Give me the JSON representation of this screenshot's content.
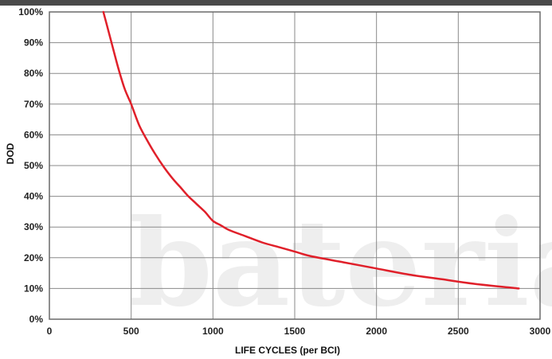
{
  "chart_data": {
    "type": "line",
    "title": "",
    "xlabel": "LIFE CYCLES (per BCI)",
    "ylabel": "DOD",
    "xlim": [
      0,
      3000
    ],
    "ylim": [
      0,
      100
    ],
    "x_ticks": [
      0,
      500,
      1000,
      1500,
      2000,
      2500,
      3000
    ],
    "y_ticks": [
      0,
      10,
      20,
      30,
      40,
      50,
      60,
      70,
      80,
      90,
      100
    ],
    "x_tick_labels": [
      "0",
      "500",
      "1000",
      "1500",
      "2000",
      "2500",
      "3000"
    ],
    "y_tick_labels": [
      "0%",
      "10%",
      "20%",
      "30%",
      "40%",
      "50%",
      "60%",
      "70%",
      "80%",
      "90%",
      "100%"
    ],
    "grid": true,
    "series": [
      {
        "color": "#e0202a",
        "x": [
          330,
          350,
          380,
          420,
          460,
          500,
          550,
          600,
          650,
          700,
          750,
          800,
          850,
          900,
          950,
          1000,
          1050,
          1100,
          1200,
          1300,
          1400,
          1500,
          1600,
          1800,
          2000,
          2200,
          2400,
          2600,
          2870
        ],
        "y": [
          100,
          96,
          90,
          82,
          75,
          70,
          63,
          58,
          53.5,
          49.5,
          46,
          43,
          40,
          37.5,
          35,
          32,
          30.5,
          29,
          27,
          25,
          23.5,
          22,
          20.5,
          18.5,
          16.5,
          14.5,
          13,
          11.5,
          10
        ]
      }
    ],
    "watermark": "bateria"
  }
}
